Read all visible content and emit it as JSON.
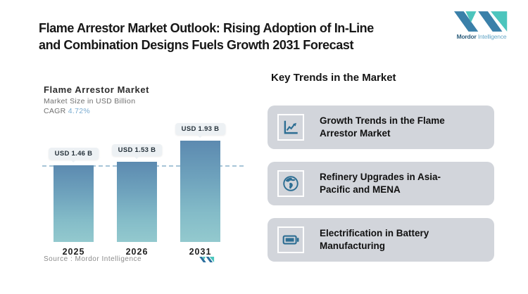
{
  "header": {
    "title_line1": "Flame Arrestor Market Outlook: Rising Adoption of In-Line",
    "title_line2": "and Combination Designs Fuels Growth 2031 Forecast",
    "brand": {
      "name": "Mordor Intelligence",
      "word_primary": "Mordor",
      "word_secondary": "Intelligence"
    }
  },
  "chart": {
    "title": "Flame Arrestor Market",
    "subtitle": "Market Size in USD Billion",
    "cagr_label": "CAGR",
    "cagr_value": "4.72%",
    "source_text": "Source :  Mordor Intelligence"
  },
  "chart_data": {
    "type": "bar",
    "title": "Flame Arrestor Market",
    "ylabel": "Market Size in USD Billion",
    "categories": [
      "2025",
      "2026",
      "2031"
    ],
    "values": [
      1.46,
      1.53,
      1.93
    ],
    "bar_labels": [
      "USD 1.46 B",
      "USD 1.53 B",
      "USD 1.93 B"
    ],
    "cagr_percent": 4.72,
    "ylim": [
      0,
      2.1
    ],
    "grid": false,
    "legend": "none",
    "reference_line_value": 1.46,
    "bar_gradient_top": "#5c8ab0",
    "bar_gradient_bottom": "#93c9ce"
  },
  "trends": {
    "heading": "Key Trends in the Market",
    "cards": [
      {
        "icon": "line-chart-icon",
        "text": "Growth Trends in the Flame Arrestor Market"
      },
      {
        "icon": "globe-icon",
        "text": "Refinery Upgrades in Asia-Pacific and MENA"
      },
      {
        "icon": "battery-icon",
        "text": "Electrification in Battery Manufacturing"
      }
    ]
  },
  "colors": {
    "brand_blue": "#3a80a9",
    "brand_teal": "#4cc5bd",
    "icon_blue": "#2d6e93",
    "card_background": "#d2d5db",
    "cagr_value_color": "#79abd0",
    "dashed_line": "#a7c5d8",
    "pill_background": "#edf1f4"
  }
}
